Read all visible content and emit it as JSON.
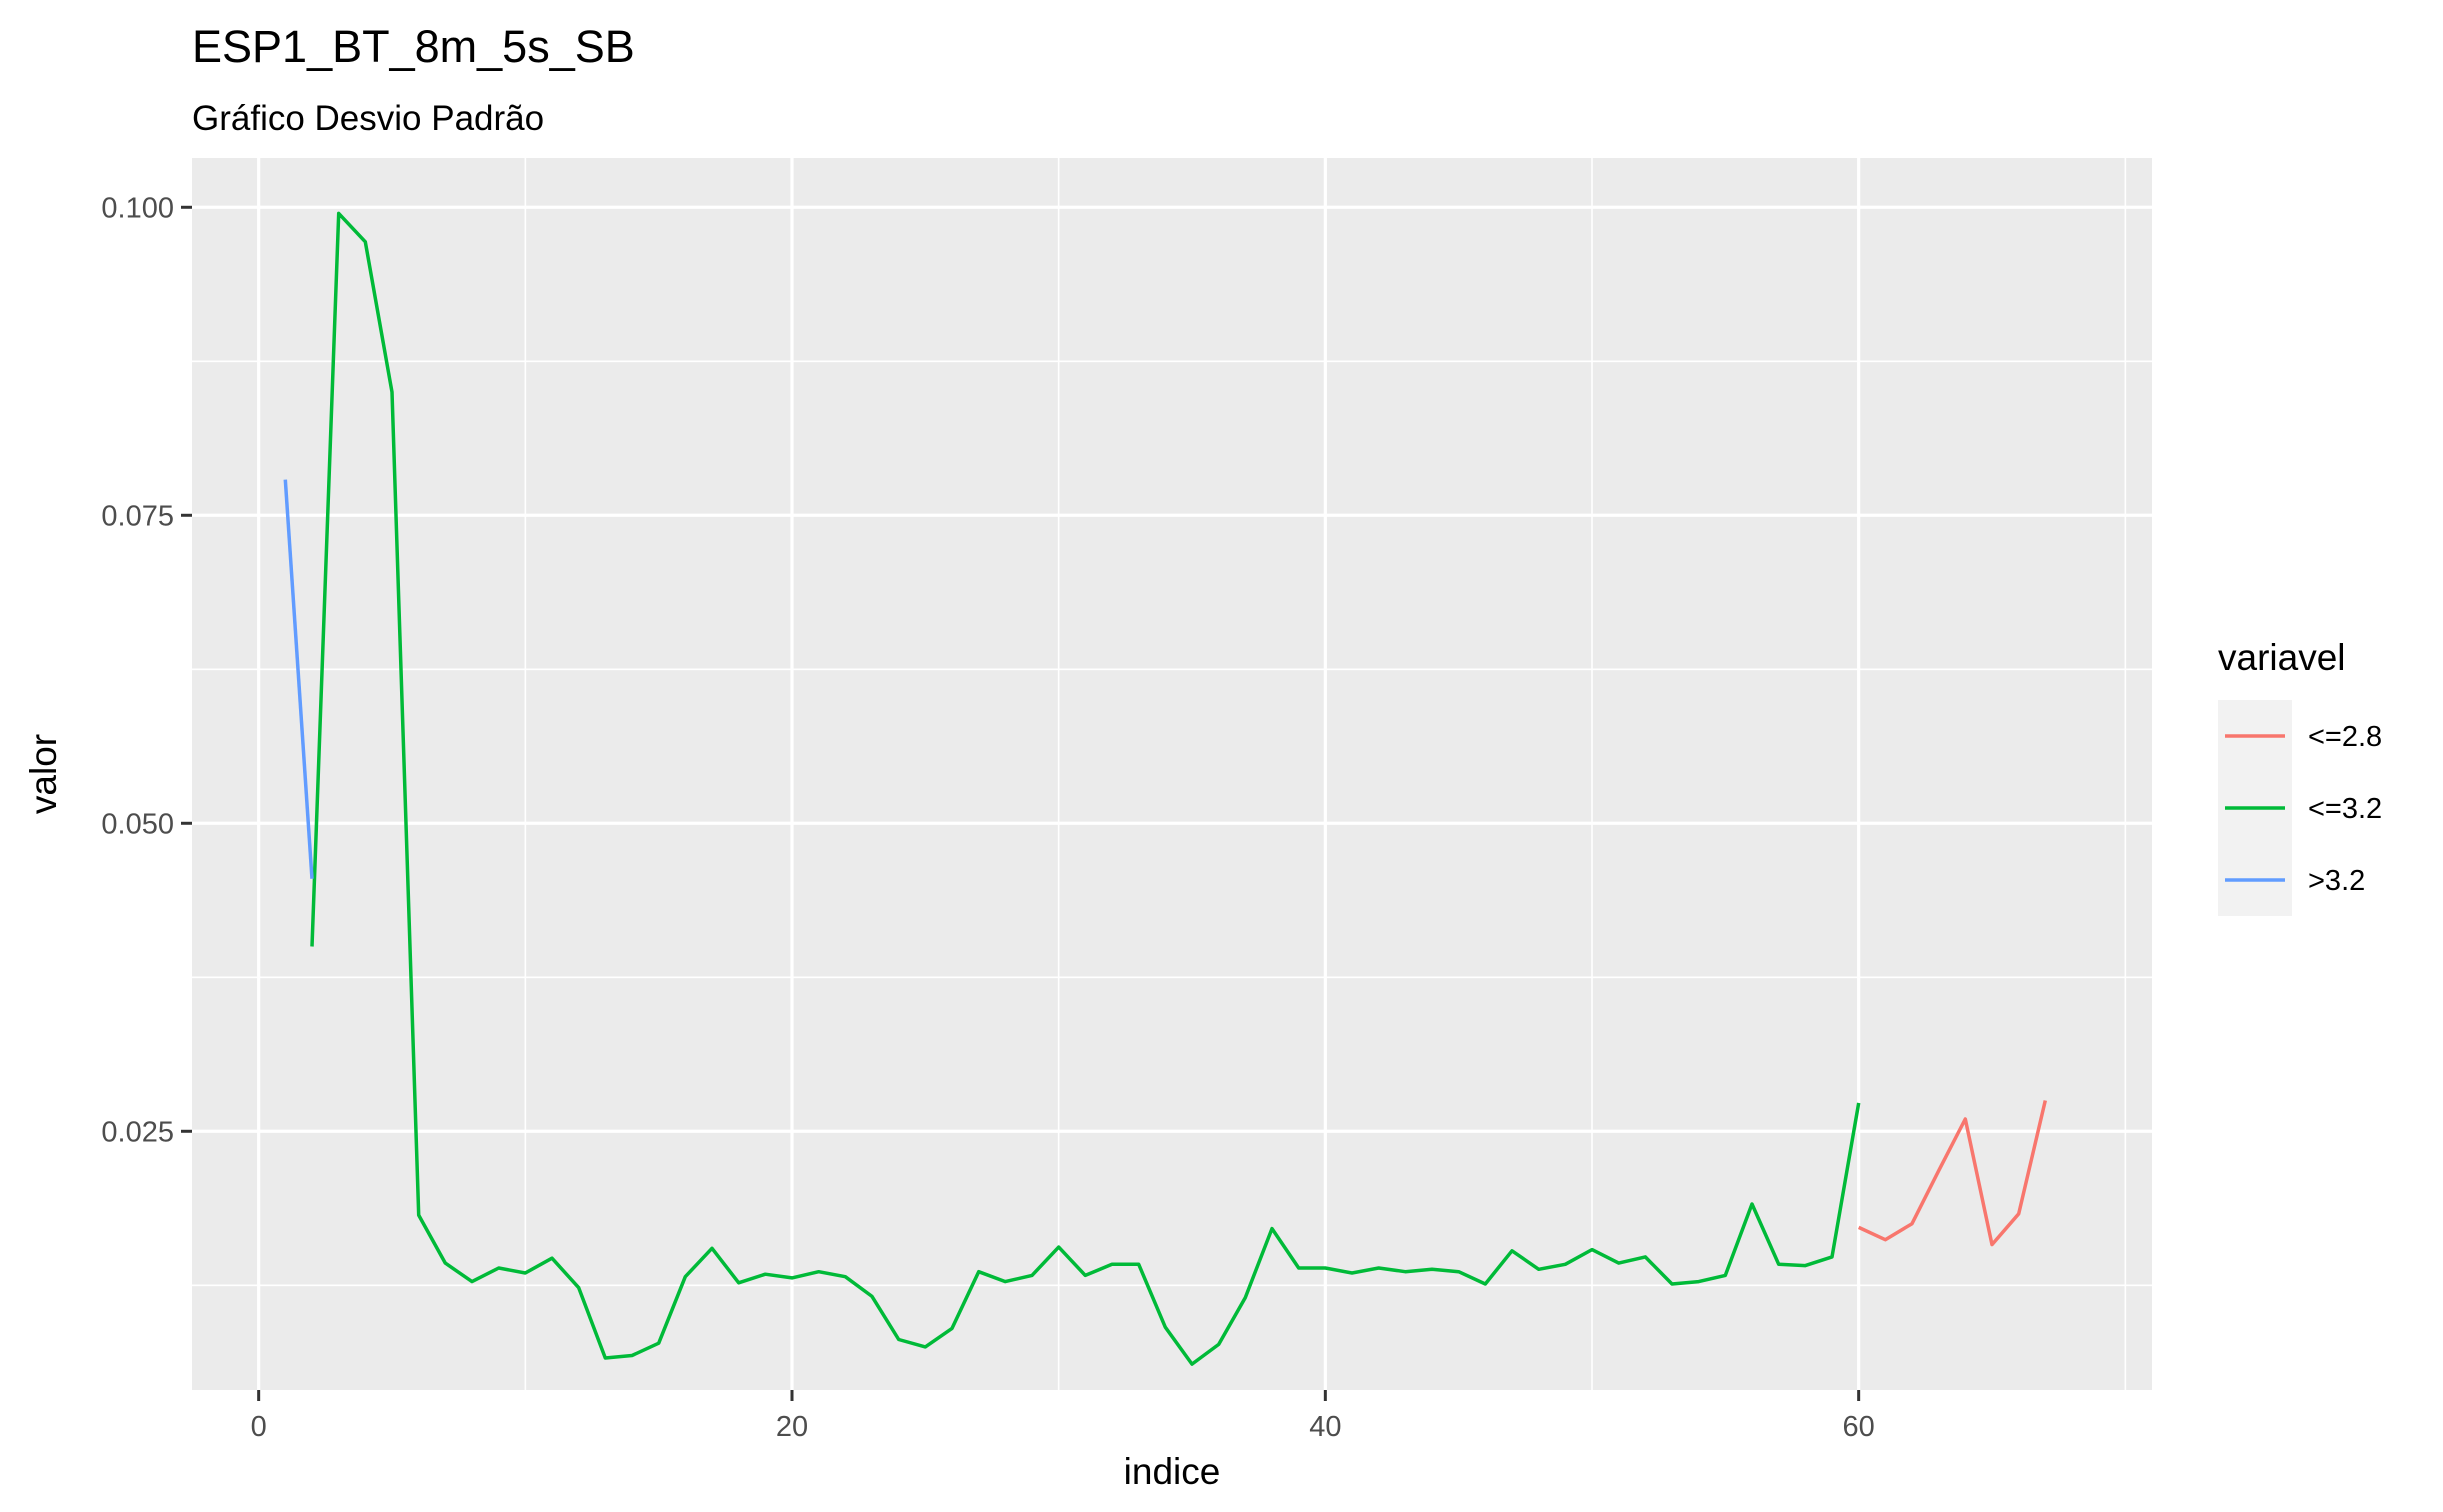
{
  "chart_data": {
    "type": "line",
    "title": "ESP1_BT_8m_5s_SB",
    "subtitle": "Gráfico Desvio Padrão",
    "xlabel": "indice",
    "ylabel": "valor",
    "xlim": [
      -2.5,
      71
    ],
    "ylim": [
      0.004,
      0.104
    ],
    "x_ticks": [
      0,
      20,
      40,
      60
    ],
    "x_tick_labels": [
      "0",
      "20",
      "40",
      "60"
    ],
    "y_ticks": [
      0.025,
      0.05,
      0.075,
      0.1
    ],
    "y_tick_labels": [
      "0.025",
      "0.050",
      "0.075",
      "0.100"
    ],
    "grid": true,
    "legend": {
      "title": "variavel",
      "position": "right"
    },
    "series": [
      {
        "name": "<=2.8",
        "color": "#F8766D",
        "x": [
          60,
          61,
          62,
          63,
          64,
          65,
          66,
          67
        ],
        "y": [
          0.0172,
          0.0162,
          0.0175,
          0.0218,
          0.026,
          0.0158,
          0.0183,
          0.0275
        ]
      },
      {
        "name": "<=3.2",
        "color": "#00BA38",
        "x": [
          2,
          3,
          4,
          5,
          6,
          7,
          8,
          9,
          10,
          11,
          12,
          13,
          14,
          15,
          16,
          17,
          18,
          19,
          20,
          21,
          22,
          23,
          24,
          25,
          26,
          27,
          28,
          29,
          30,
          31,
          32,
          33,
          34,
          35,
          36,
          37,
          38,
          39,
          40,
          41,
          42,
          43,
          44,
          45,
          46,
          47,
          48,
          49,
          50,
          51,
          52,
          53,
          54,
          55,
          56,
          57,
          58,
          59,
          60
        ],
        "y": [
          0.04,
          0.0995,
          0.0972,
          0.085,
          0.0182,
          0.0143,
          0.0128,
          0.0139,
          0.0135,
          0.0147,
          0.0123,
          0.0066,
          0.0068,
          0.0078,
          0.0132,
          0.0155,
          0.0127,
          0.0134,
          0.0131,
          0.0136,
          0.0132,
          0.0116,
          0.0081,
          0.0075,
          0.009,
          0.0136,
          0.0128,
          0.0133,
          0.0156,
          0.0133,
          0.0142,
          0.0142,
          0.0091,
          0.0061,
          0.0077,
          0.0115,
          0.0171,
          0.0139,
          0.0139,
          0.0135,
          0.0139,
          0.0136,
          0.0138,
          0.0136,
          0.0126,
          0.0153,
          0.0138,
          0.0142,
          0.0154,
          0.0143,
          0.0148,
          0.0126,
          0.0128,
          0.0133,
          0.0191,
          0.0142,
          0.0141,
          0.0148,
          0.0273
        ]
      },
      {
        "name": ">3.2",
        "color": "#619CFF",
        "x": [
          1,
          2
        ],
        "y": [
          0.0779,
          0.0455
        ]
      }
    ]
  }
}
